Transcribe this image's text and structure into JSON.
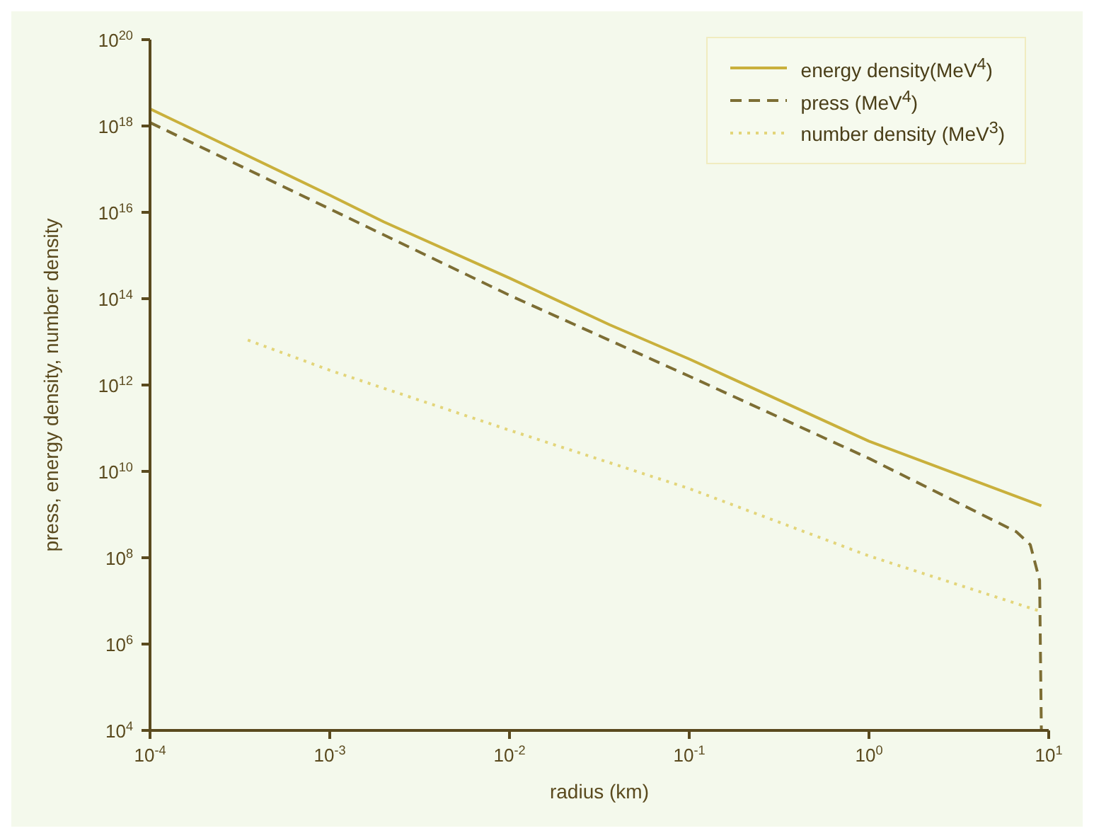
{
  "chart_data": {
    "type": "line",
    "xlabel": "radius (km)",
    "ylabel": "press, energy density, number density",
    "log": "xy",
    "legend": "top right",
    "marker": "none",
    "xlim": [
      0.0001,
      10
    ],
    "ylim": [
      10000,
      1e+20
    ],
    "xticks": [
      {
        "value": 0.0001,
        "label": "10$^{-4}$"
      },
      {
        "value": 0.001,
        "label": "10$^{-3}$"
      },
      {
        "value": 0.01,
        "label": "10$^{-2}$"
      },
      {
        "value": 0.1,
        "label": "10$^{-1}$"
      },
      {
        "value": 1,
        "label": "10$^{0}$"
      },
      {
        "value": 10,
        "label": "10$^{1}$"
      }
    ],
    "yticks": [
      {
        "value": 10000,
        "label": "10$^{4}$"
      },
      {
        "value": 1000000,
        "label": "10$^{6}$"
      },
      {
        "value": 100000000,
        "label": "10$^{8}$"
      },
      {
        "value": 10000000000,
        "label": "10$^{10}$"
      },
      {
        "value": 1000000000000,
        "label": "10$^{12}$"
      },
      {
        "value": 100000000000000,
        "label": "10$^{14}$"
      },
      {
        "value": 1e+16,
        "label": "10$^{16}$"
      },
      {
        "value": 1e+18,
        "label": "10$^{18}$"
      },
      {
        "value": 1e+20,
        "label": "10$^{20}$"
      }
    ],
    "series": [
      {
        "name": "energy density(MeV$^{4}$)",
        "color": "#c9b03c",
        "line_style": "solid",
        "x": [
          0.0001,
          0.001,
          0.002,
          0.01,
          0.036,
          0.1,
          1,
          9.1
        ],
        "values": [
          2.5e+18,
          2.5e+16,
          6000000000000000.0,
          300000000000000.0,
          25000000000000.0,
          4000000000000.0,
          50000000000.0,
          1600000000.0
        ]
      },
      {
        "name": "press  (MeV$^{4}$)",
        "color": "#7d6e34",
        "line_style": "dashed",
        "x": [
          0.0001,
          0.001,
          0.01,
          0.1,
          1,
          6.6,
          7.9,
          8.9,
          9.1
        ],
        "values": [
          1.2e+18,
          1.2e+16,
          120000000000000.0,
          1600000000000.0,
          20000000000.0,
          400000000.0,
          200000000.0,
          30000000.0,
          10000
        ]
      },
      {
        "name": "number density (MeV$^{3}$)",
        "color": "#e3d57a",
        "line_style": "dotted",
        "x": [
          0.00035,
          0.001,
          0.01,
          0.1,
          1,
          8.7
        ],
        "values": [
          11000000000000.0,
          2200000000000.0,
          90000000000.0,
          4000000000.0,
          110000000.0,
          6000000.0
        ]
      }
    ]
  }
}
